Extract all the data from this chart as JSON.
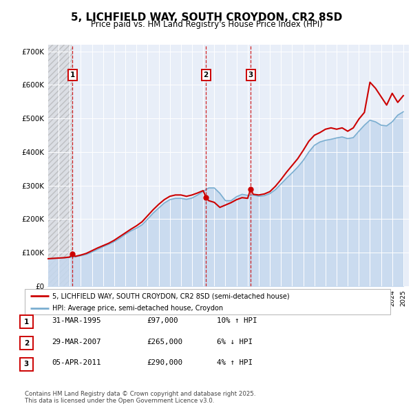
{
  "title": "5, LICHFIELD WAY, SOUTH CROYDON, CR2 8SD",
  "subtitle": "Price paid vs. HM Land Registry's House Price Index (HPI)",
  "title_fontsize": 11,
  "subtitle_fontsize": 8.5,
  "ylabel_ticks": [
    "£0",
    "£100K",
    "£200K",
    "£300K",
    "£400K",
    "£500K",
    "£600K",
    "£700K"
  ],
  "ytick_values": [
    0,
    100000,
    200000,
    300000,
    400000,
    500000,
    600000,
    700000
  ],
  "ylim": [
    0,
    720000
  ],
  "xlim_start": 1993.0,
  "xlim_end": 2025.5,
  "background_color": "#e8eef8",
  "hatched_region_end": 1995.25,
  "red_line_color": "#cc0000",
  "blue_fill_color": "#c5d8ee",
  "blue_line_color": "#7aaed0",
  "legend_line1": "5, LICHFIELD WAY, SOUTH CROYDON, CR2 8SD (semi-detached house)",
  "legend_line2": "HPI: Average price, semi-detached house, Croydon",
  "sale_points": [
    {
      "label": "1",
      "year": 1995.25,
      "price": 97000,
      "date": "31-MAR-1995",
      "pct": "10%",
      "dir": "↑"
    },
    {
      "label": "2",
      "year": 2007.25,
      "price": 265000,
      "date": "29-MAR-2007",
      "pct": "6%",
      "dir": "↓"
    },
    {
      "label": "3",
      "year": 2011.27,
      "price": 290000,
      "date": "05-APR-2011",
      "pct": "4%",
      "dir": "↑"
    }
  ],
  "footer_text": "Contains HM Land Registry data © Crown copyright and database right 2025.\nThis data is licensed under the Open Government Licence v3.0.",
  "hpi_data": {
    "years": [
      1993.0,
      1993.5,
      1994.0,
      1994.5,
      1995.0,
      1995.5,
      1996.0,
      1996.5,
      1997.0,
      1997.5,
      1998.0,
      1998.5,
      1999.0,
      1999.5,
      2000.0,
      2000.5,
      2001.0,
      2001.5,
      2002.0,
      2002.5,
      2003.0,
      2003.5,
      2004.0,
      2004.5,
      2005.0,
      2005.5,
      2006.0,
      2006.5,
      2007.0,
      2007.5,
      2008.0,
      2008.5,
      2009.0,
      2009.5,
      2010.0,
      2010.5,
      2011.0,
      2011.5,
      2012.0,
      2012.5,
      2013.0,
      2013.5,
      2014.0,
      2014.5,
      2015.0,
      2015.5,
      2016.0,
      2016.5,
      2017.0,
      2017.5,
      2018.0,
      2018.5,
      2019.0,
      2019.5,
      2020.0,
      2020.5,
      2021.0,
      2021.5,
      2022.0,
      2022.5,
      2023.0,
      2023.5,
      2024.0,
      2024.5,
      2025.0
    ],
    "values": [
      82000,
      83000,
      84000,
      85000,
      86000,
      88000,
      91000,
      95000,
      102000,
      110000,
      118000,
      125000,
      133000,
      143000,
      155000,
      165000,
      173000,
      183000,
      200000,
      218000,
      233000,
      248000,
      258000,
      262000,
      262000,
      259000,
      263000,
      272000,
      283000,
      293000,
      293000,
      277000,
      255000,
      255000,
      267000,
      274000,
      271000,
      272000,
      268000,
      270000,
      276000,
      288000,
      305000,
      322000,
      338000,
      355000,
      375000,
      400000,
      420000,
      430000,
      435000,
      438000,
      442000,
      445000,
      440000,
      443000,
      462000,
      480000,
      495000,
      490000,
      480000,
      478000,
      490000,
      510000,
      520000
    ]
  },
  "price_data": {
    "years": [
      1993.0,
      1993.5,
      1994.0,
      1994.5,
      1995.0,
      1995.25,
      1995.5,
      1996.0,
      1996.5,
      1997.0,
      1997.5,
      1998.0,
      1998.5,
      1999.0,
      1999.5,
      2000.0,
      2000.5,
      2001.0,
      2001.5,
      2002.0,
      2002.5,
      2003.0,
      2003.5,
      2004.0,
      2004.5,
      2005.0,
      2005.5,
      2006.0,
      2006.5,
      2007.0,
      2007.25,
      2007.5,
      2008.0,
      2008.5,
      2009.0,
      2009.5,
      2010.0,
      2010.5,
      2011.0,
      2011.27,
      2011.5,
      2012.0,
      2012.5,
      2013.0,
      2013.5,
      2014.0,
      2014.5,
      2015.0,
      2015.5,
      2016.0,
      2016.5,
      2017.0,
      2017.5,
      2018.0,
      2018.5,
      2019.0,
      2019.5,
      2020.0,
      2020.5,
      2021.0,
      2021.5,
      2022.0,
      2022.5,
      2023.0,
      2023.5,
      2024.0,
      2024.5,
      2025.0
    ],
    "values": [
      82000,
      83000,
      84000,
      85000,
      87000,
      97000,
      89000,
      93000,
      98000,
      106000,
      114000,
      121000,
      128000,
      137000,
      148000,
      159000,
      170000,
      180000,
      192000,
      210000,
      228000,
      244000,
      258000,
      268000,
      272000,
      272000,
      268000,
      272000,
      278000,
      285000,
      265000,
      255000,
      250000,
      235000,
      242000,
      249000,
      258000,
      264000,
      262000,
      290000,
      274000,
      272000,
      275000,
      282000,
      298000,
      318000,
      340000,
      360000,
      380000,
      405000,
      432000,
      450000,
      458000,
      468000,
      472000,
      468000,
      472000,
      462000,
      472000,
      498000,
      518000,
      608000,
      590000,
      565000,
      540000,
      575000,
      548000,
      568000
    ]
  }
}
